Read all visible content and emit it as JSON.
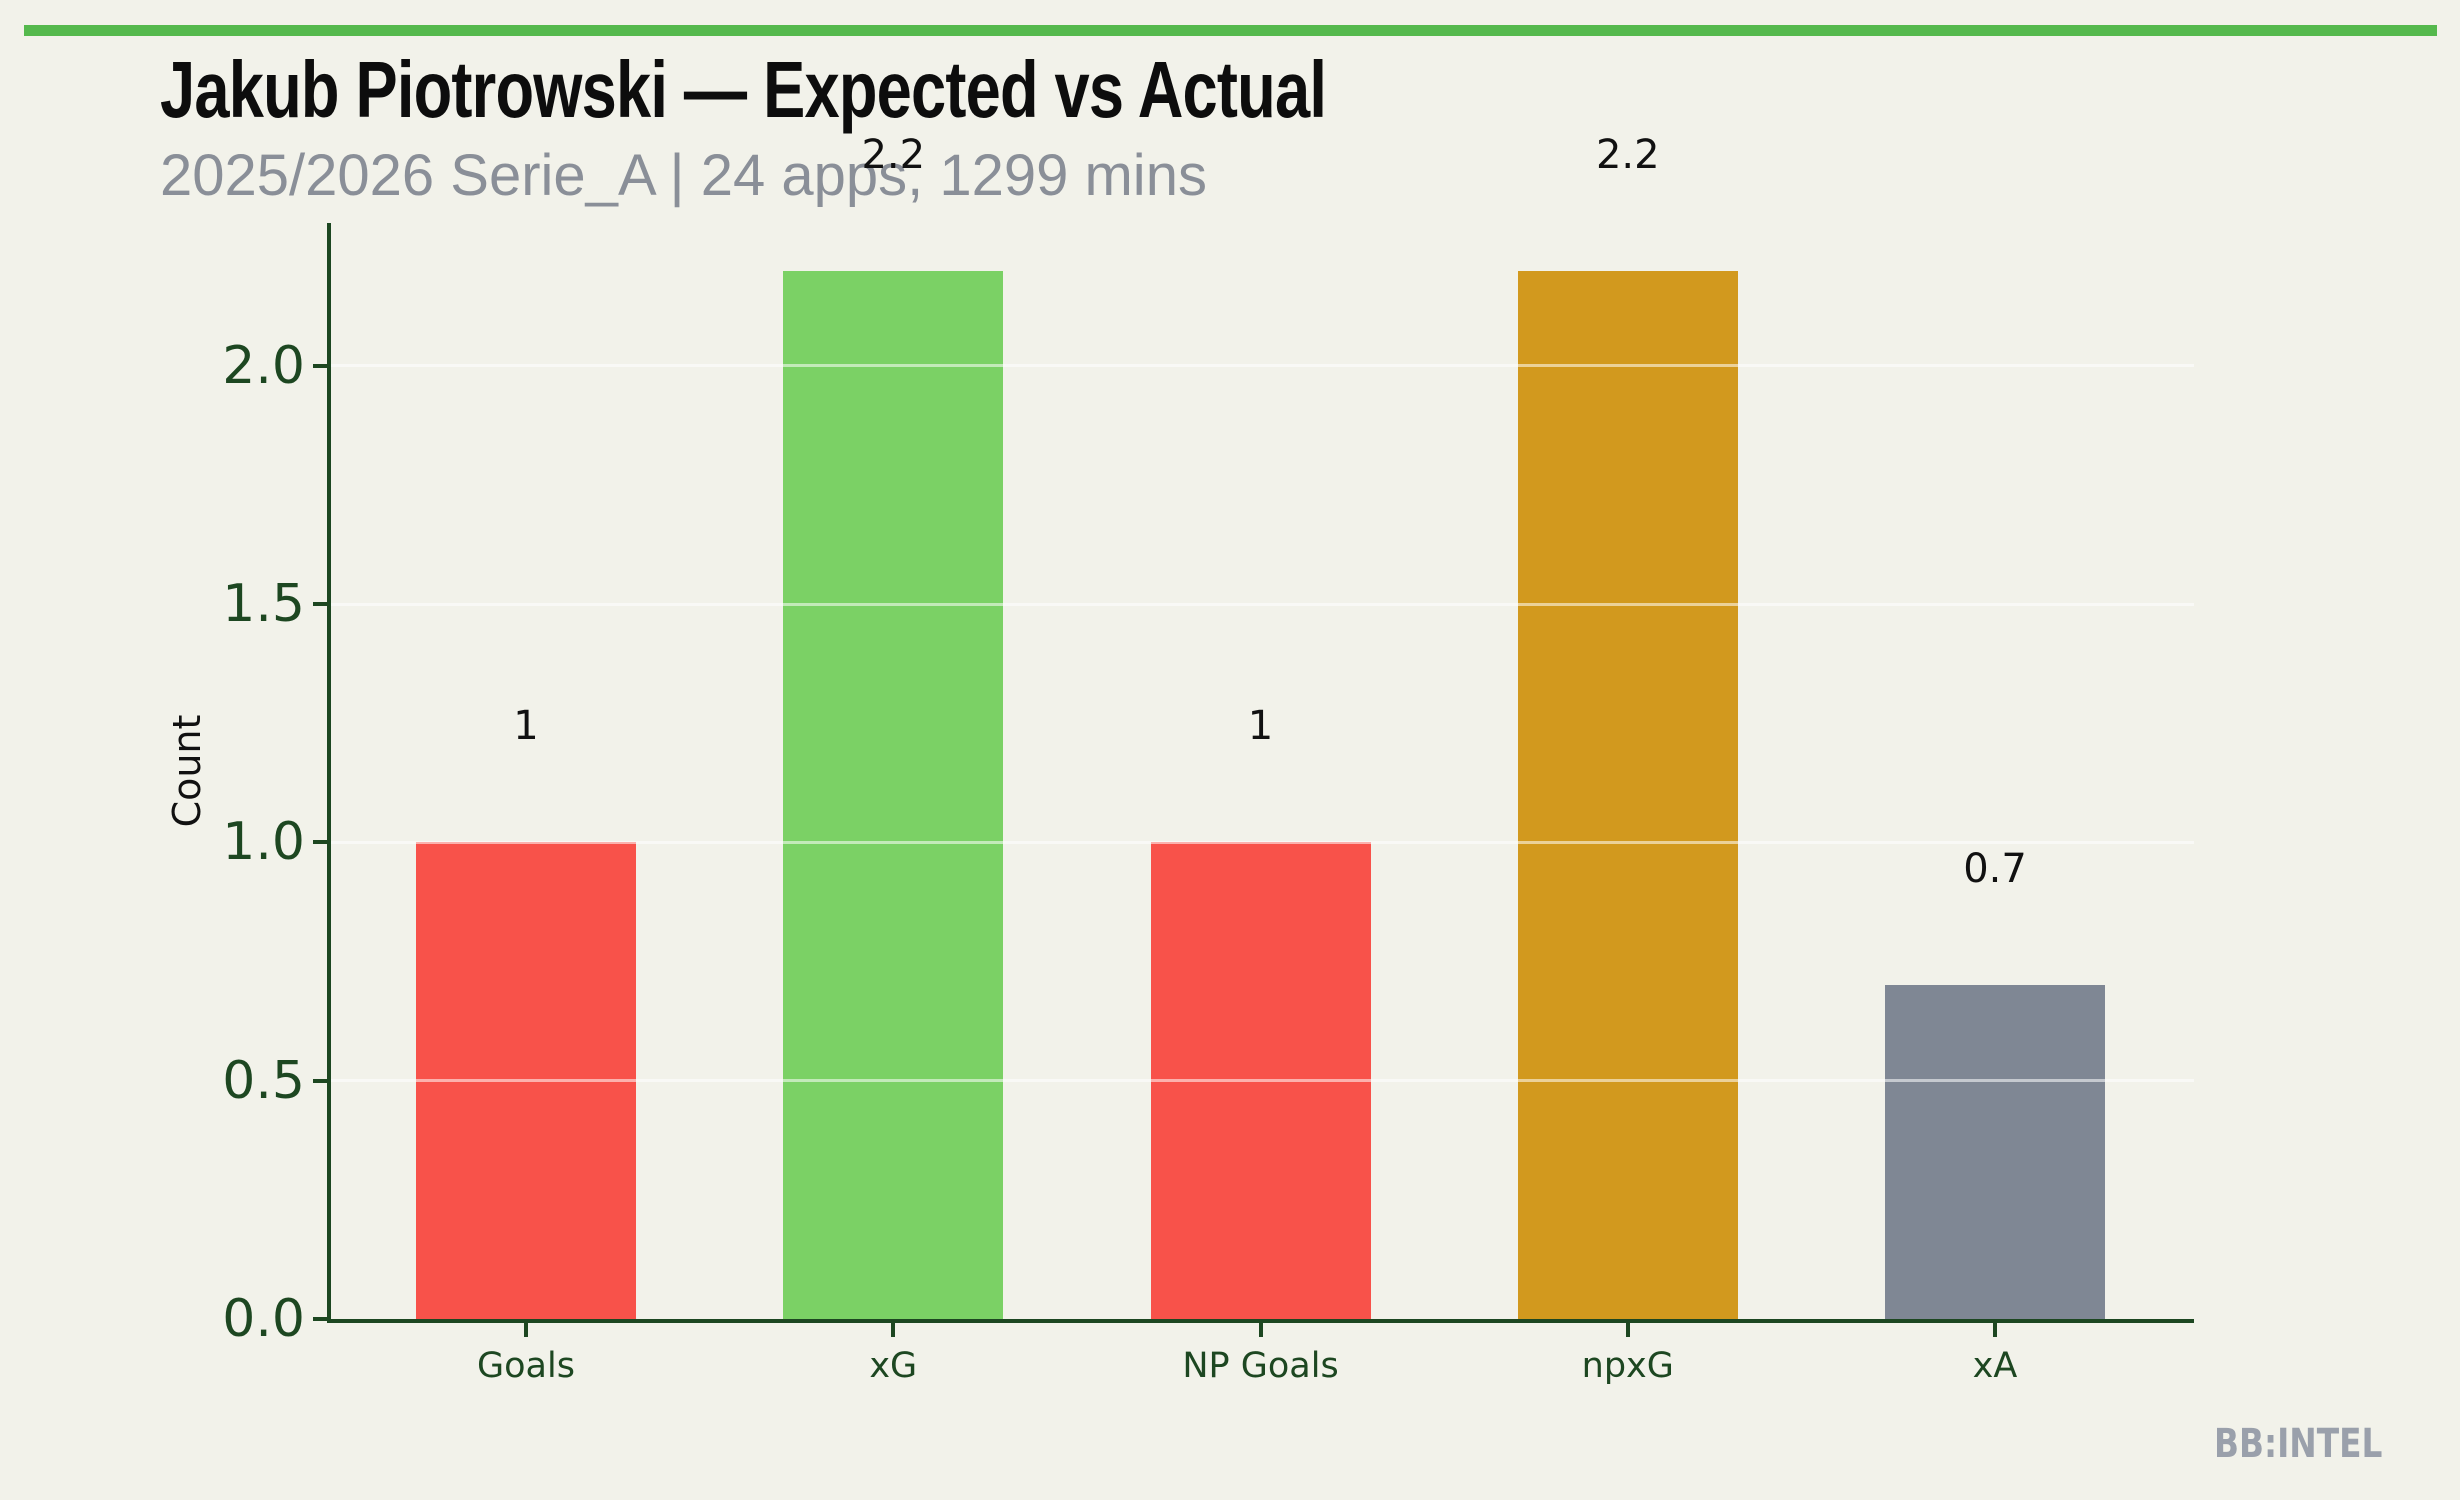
{
  "header": {
    "title": "Jakub Piotrowski — Expected vs Actual",
    "subtitle": "2025/2026 Serie_A | 24 apps, 1299 mins"
  },
  "footer": {
    "watermark": "BB:INTEL"
  },
  "colors": {
    "background": "#f2f2ea",
    "accent_strip_green": "#55b94d",
    "axis_dark_green": "#1d4721",
    "subtitle_gray": "#8a8f98",
    "watermark_gray": "#9aa0ab",
    "value_label_black": "#111111",
    "gridline": "rgba(255,255,255,0.55)"
  },
  "chart_data": {
    "type": "bar",
    "title": "Jakub Piotrowski — Expected vs Actual",
    "subtitle": "2025/2026 Serie_A | 24 apps, 1299 mins",
    "categories": [
      "Goals",
      "xG",
      "NP Goals",
      "npxG",
      "xA"
    ],
    "values": [
      1,
      2.2,
      1,
      2.2,
      0.7
    ],
    "value_labels": [
      "1",
      "2.2",
      "1",
      "2.2",
      "0.7"
    ],
    "bar_colors": [
      "#f8524a",
      "#7bd165",
      "#f8524a",
      "#d2991e",
      "#7f8794"
    ],
    "xlabel": "",
    "ylabel": "Count",
    "ylim": [
      0,
      2.3
    ],
    "yticks": [
      0.0,
      0.5,
      1.0,
      1.5,
      2.0
    ],
    "ytick_labels": [
      "0.0",
      "0.5",
      "1.0",
      "1.5",
      "2.0"
    ],
    "grid": "horizontal-white-over-bars",
    "legend": "none"
  }
}
